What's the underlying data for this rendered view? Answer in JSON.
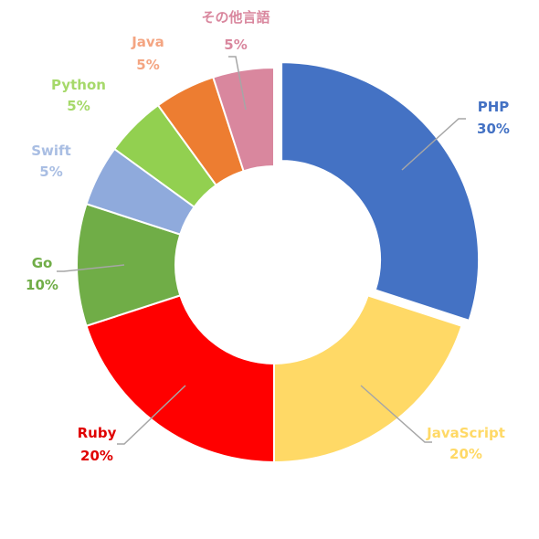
{
  "chart_data": {
    "type": "pie",
    "slices": [
      {
        "label": "PHP",
        "value": 30,
        "percent_text": "30%",
        "color": "#4472C4",
        "exploded": true
      },
      {
        "label": "JavaScript",
        "value": 20,
        "percent_text": "20%",
        "color": "#FFD966"
      },
      {
        "label": "Ruby",
        "value": 20,
        "percent_text": "20%",
        "color": "#FF0000"
      },
      {
        "label": "Go",
        "value": 10,
        "percent_text": "10%",
        "color": "#70AD47"
      },
      {
        "label": "Swift",
        "value": 5,
        "percent_text": "5%",
        "color": "#8FAADC"
      },
      {
        "label": "Python",
        "value": 5,
        "percent_text": "5%",
        "color": "#92D050"
      },
      {
        "label": "Java",
        "value": 5,
        "percent_text": "5%",
        "color": "#ED7D31"
      },
      {
        "label": "その他言語",
        "value": 5,
        "percent_text": "5%",
        "color": "#D9879E"
      }
    ],
    "label_colors": {
      "PHP": "#4472C4",
      "JavaScript": "#FFD966",
      "Ruby": "#E00000",
      "Go": "#70AD47",
      "Swift": "#A9BEE3",
      "Python": "#A6D96A",
      "Java": "#F4A582",
      "その他言語": "#D9879E"
    },
    "donut": true,
    "legend": "none"
  }
}
